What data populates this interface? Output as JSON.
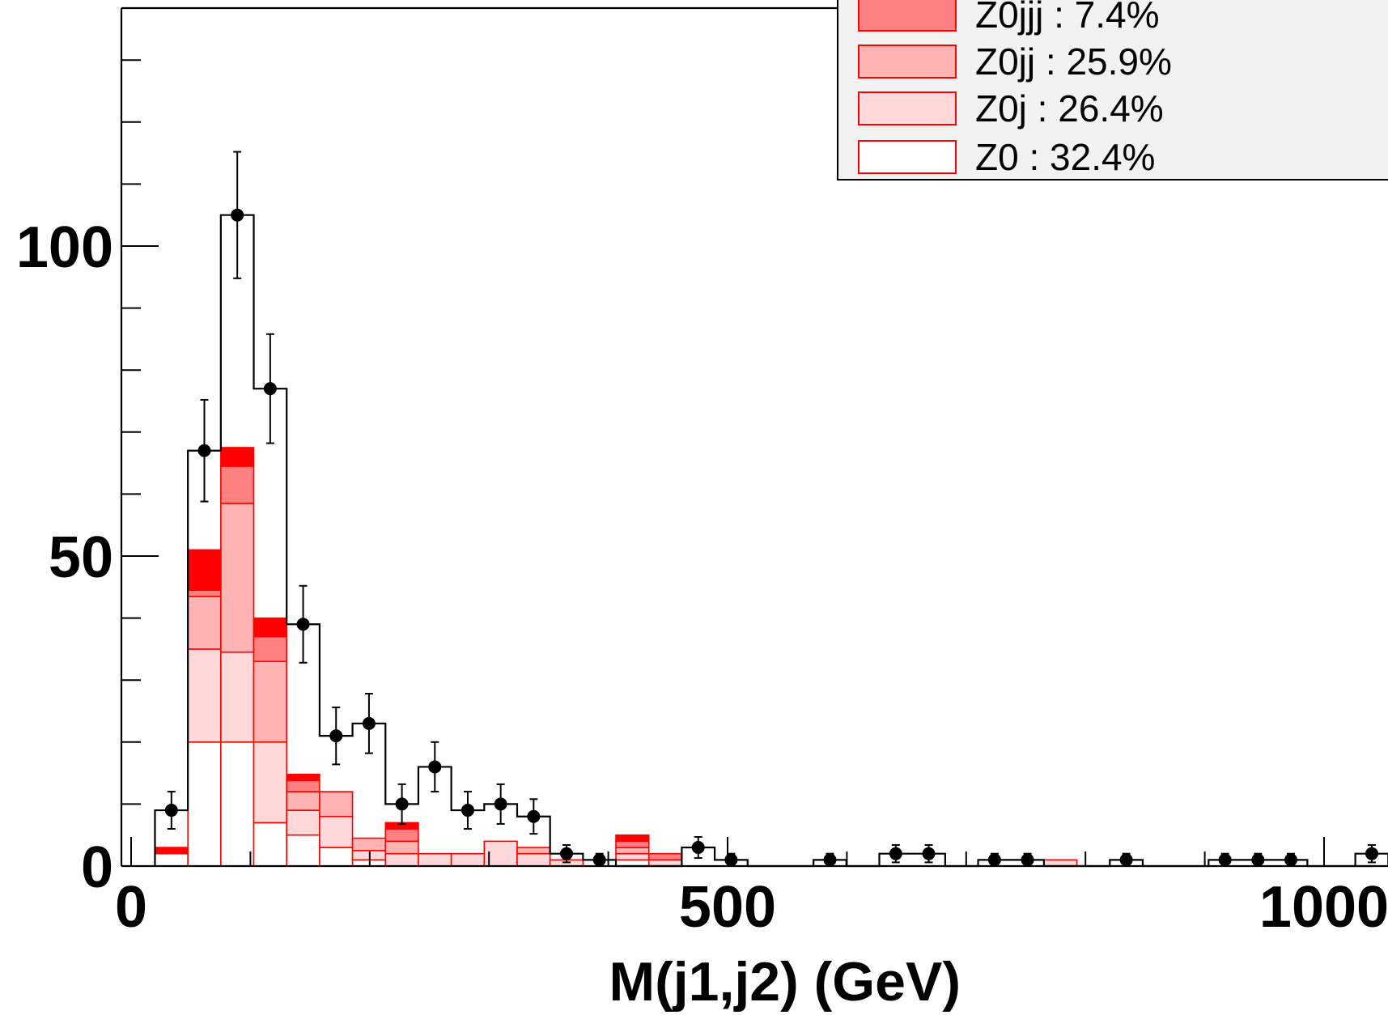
{
  "chart_data": {
    "type": "bar",
    "subtype": "stacked-histogram-with-data-points",
    "xlabel": "M(j1,j2) (GeV)",
    "ylabel": "",
    "xlim": [
      -20,
      1050
    ],
    "ylim": [
      0,
      138
    ],
    "x_ticks": [
      0,
      500,
      1000
    ],
    "y_ticks": [
      0,
      50,
      100
    ],
    "bin_width": 27.6,
    "bin_start": 20,
    "n_bins": 37,
    "legend_position": "top-right",
    "legend": [
      {
        "label": "Z0jjj : 7.4%",
        "color": "#ff8080"
      },
      {
        "label": "Z0jj : 25.9%",
        "color": "#ffb3b3"
      },
      {
        "label": "Z0j : 26.4%",
        "color": "#ffd9d9"
      },
      {
        "label": "Z0 : 32.4%",
        "color": "#ffffff"
      }
    ],
    "series": [
      {
        "name": "Z0",
        "color": "#ffffff",
        "values": [
          2,
          20,
          20,
          7,
          5,
          3,
          1,
          0,
          0,
          0,
          0,
          0,
          0,
          0,
          1,
          0,
          0,
          0,
          0,
          0,
          0,
          0,
          0,
          0,
          0,
          0,
          0,
          0,
          0,
          0,
          0,
          0,
          0,
          0,
          0,
          0,
          0
        ]
      },
      {
        "name": "Z0j",
        "color": "#ffd9d9",
        "values": [
          0,
          15,
          14.5,
          13,
          4,
          5,
          1.5,
          2,
          2,
          2,
          4,
          2,
          1,
          0,
          1,
          1,
          0,
          0,
          0,
          0,
          0,
          0,
          0,
          0,
          0,
          0,
          0,
          1,
          0,
          0,
          0,
          0,
          0,
          0,
          0,
          0,
          0
        ]
      },
      {
        "name": "Z0jj",
        "color": "#ffb3b3",
        "values": [
          0,
          8.5,
          24,
          13,
          3,
          4,
          2,
          2,
          0,
          0,
          0,
          1,
          0,
          0,
          1,
          0,
          0,
          0,
          0,
          0,
          0,
          0,
          0,
          0,
          0,
          0,
          0,
          0,
          0,
          0,
          0,
          0,
          0,
          0,
          0,
          0,
          0
        ]
      },
      {
        "name": "Z0jjj",
        "color": "#ff8080",
        "values": [
          0,
          1,
          6,
          4,
          1.8,
          0,
          0,
          2,
          0,
          0,
          0,
          0,
          0,
          0,
          1,
          1,
          0,
          0,
          0,
          0,
          0,
          0,
          0,
          0,
          0,
          0,
          0,
          0,
          0,
          0,
          0,
          0,
          0,
          0,
          0,
          0,
          0
        ]
      },
      {
        "name": "",
        "color": "#ff0000",
        "values": [
          1,
          6.5,
          3,
          3,
          1,
          0,
          0,
          1,
          0,
          0,
          0,
          0,
          0,
          0,
          1,
          0,
          0,
          0,
          0,
          0,
          0,
          0,
          0,
          0,
          0,
          0,
          0,
          0,
          0,
          0,
          0,
          0,
          0,
          0,
          0,
          0,
          0
        ]
      }
    ],
    "data_points": [
      9,
      67,
      105,
      77,
      39,
      21,
      23,
      10,
      16,
      9,
      10,
      8,
      2,
      1,
      0,
      0,
      3,
      1,
      0,
      0,
      1,
      0,
      2,
      2,
      0,
      1,
      1,
      0,
      0,
      1,
      0,
      0,
      1,
      1,
      1,
      0,
      0
    ],
    "data_errors": [
      3,
      8.2,
      10.2,
      8.8,
      6.2,
      4.6,
      4.8,
      3.2,
      4,
      3,
      3.2,
      2.8,
      1.4,
      1,
      0,
      0,
      1.7,
      1,
      0,
      0,
      1,
      0,
      1.4,
      1.4,
      0,
      1,
      1,
      0,
      0,
      1,
      0,
      0,
      1,
      1,
      1,
      0,
      0
    ],
    "total_outline": [
      9,
      67,
      105,
      77,
      39,
      21,
      23,
      10,
      16,
      9,
      10,
      8,
      2,
      1,
      0,
      0,
      3,
      1,
      0,
      0,
      1,
      0,
      2,
      2,
      0,
      1,
      1,
      0,
      0,
      1,
      0,
      0,
      1,
      1,
      1,
      0,
      0
    ],
    "extra_points": [
      {
        "x": 1040,
        "y": 2,
        "err": 1.4
      }
    ]
  }
}
